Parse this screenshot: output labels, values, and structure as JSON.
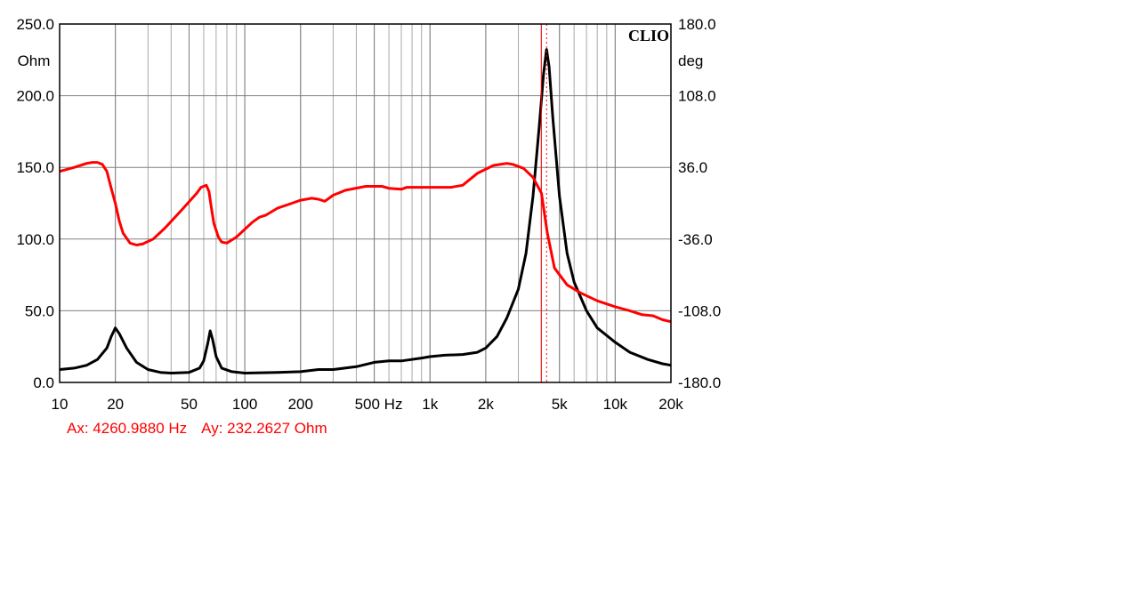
{
  "chart_data": {
    "type": "line",
    "title": "",
    "brand_label": "CLIO",
    "x_scale": "log",
    "x_range": [
      10,
      20000
    ],
    "x_ticks": [
      {
        "value": 10,
        "label": "10"
      },
      {
        "value": 20,
        "label": "20"
      },
      {
        "value": 50,
        "label": "50"
      },
      {
        "value": 100,
        "label": "100"
      },
      {
        "value": 200,
        "label": "200"
      },
      {
        "value": 500,
        "label": "500 Hz"
      },
      {
        "value": 1000,
        "label": "1k"
      },
      {
        "value": 2000,
        "label": "2k"
      },
      {
        "value": 5000,
        "label": "5k"
      },
      {
        "value": 10000,
        "label": "10k"
      },
      {
        "value": 20000,
        "label": "20k"
      }
    ],
    "y_left": {
      "unit": "Ohm",
      "range": [
        0,
        250
      ],
      "ticks": [
        {
          "value": 0,
          "label": "0.0"
        },
        {
          "value": 50,
          "label": "50.0"
        },
        {
          "value": 100,
          "label": "100.0"
        },
        {
          "value": 150,
          "label": "150.0"
        },
        {
          "value": 200,
          "label": "200.0"
        },
        {
          "value": 250,
          "label": "250.0"
        }
      ]
    },
    "y_right": {
      "unit": "deg",
      "range": [
        -180,
        180
      ],
      "ticks": [
        {
          "value": -180,
          "label": "-180.0"
        },
        {
          "value": -108,
          "label": "-108.0"
        },
        {
          "value": -36,
          "label": "-36.0"
        },
        {
          "value": 36,
          "label": "36.0"
        },
        {
          "value": 108,
          "label": "108.0"
        },
        {
          "value": 180,
          "label": "180.0"
        }
      ]
    },
    "grid": true,
    "cursor": {
      "x": 4260.988,
      "ax_label": "Ax: 4260.9880 Hz",
      "ay_label": "Ay: 232.2627 Ohm"
    },
    "series": [
      {
        "axis": "left",
        "color": "#000000",
        "points": [
          [
            10,
            9
          ],
          [
            12,
            10
          ],
          [
            14,
            12
          ],
          [
            16,
            16
          ],
          [
            18,
            24
          ],
          [
            19,
            32
          ],
          [
            20,
            38
          ],
          [
            21,
            34
          ],
          [
            23,
            24
          ],
          [
            26,
            14
          ],
          [
            30,
            9
          ],
          [
            35,
            7
          ],
          [
            40,
            6.5
          ],
          [
            50,
            7
          ],
          [
            57,
            10
          ],
          [
            60,
            15
          ],
          [
            63,
            27
          ],
          [
            65,
            36
          ],
          [
            67,
            30
          ],
          [
            70,
            18
          ],
          [
            75,
            10
          ],
          [
            85,
            7.5
          ],
          [
            100,
            6.5
          ],
          [
            150,
            7
          ],
          [
            200,
            7.5
          ],
          [
            250,
            9
          ],
          [
            300,
            9
          ],
          [
            400,
            11
          ],
          [
            500,
            14
          ],
          [
            600,
            15
          ],
          [
            700,
            15
          ],
          [
            900,
            17
          ],
          [
            1000,
            18
          ],
          [
            1200,
            19
          ],
          [
            1500,
            19.5
          ],
          [
            1800,
            21
          ],
          [
            2000,
            24
          ],
          [
            2300,
            32
          ],
          [
            2600,
            45
          ],
          [
            3000,
            65
          ],
          [
            3300,
            90
          ],
          [
            3600,
            130
          ],
          [
            3900,
            180
          ],
          [
            4100,
            215
          ],
          [
            4260.988,
            232.26
          ],
          [
            4400,
            220
          ],
          [
            4600,
            185
          ],
          [
            5000,
            130
          ],
          [
            5500,
            90
          ],
          [
            6000,
            70
          ],
          [
            7000,
            50
          ],
          [
            8000,
            38
          ],
          [
            10000,
            28
          ],
          [
            12000,
            21
          ],
          [
            15000,
            16
          ],
          [
            18000,
            13
          ],
          [
            20000,
            12
          ]
        ]
      },
      {
        "axis": "right",
        "color": "#ff0000",
        "points": [
          [
            10,
            32
          ],
          [
            12,
            36
          ],
          [
            14,
            40
          ],
          [
            15,
            41
          ],
          [
            16,
            41
          ],
          [
            17,
            39
          ],
          [
            18,
            32
          ],
          [
            19,
            15
          ],
          [
            20,
            0
          ],
          [
            21,
            -18
          ],
          [
            22,
            -30
          ],
          [
            24,
            -40
          ],
          [
            26,
            -42
          ],
          [
            28,
            -41
          ],
          [
            32,
            -36
          ],
          [
            37,
            -25
          ],
          [
            45,
            -8
          ],
          [
            55,
            10
          ],
          [
            58,
            16
          ],
          [
            62,
            18
          ],
          [
            64,
            12
          ],
          [
            66,
            -5
          ],
          [
            68,
            -20
          ],
          [
            72,
            -34
          ],
          [
            75,
            -39
          ],
          [
            80,
            -40
          ],
          [
            90,
            -34
          ],
          [
            110,
            -19
          ],
          [
            120,
            -14
          ],
          [
            130,
            -12
          ],
          [
            150,
            -5
          ],
          [
            180,
            0
          ],
          [
            200,
            3
          ],
          [
            230,
            5
          ],
          [
            250,
            4
          ],
          [
            270,
            2
          ],
          [
            280,
            4
          ],
          [
            300,
            8
          ],
          [
            350,
            13
          ],
          [
            450,
            17
          ],
          [
            550,
            17
          ],
          [
            600,
            15
          ],
          [
            700,
            14
          ],
          [
            750,
            16
          ],
          [
            900,
            16
          ],
          [
            1000,
            16
          ],
          [
            1300,
            16
          ],
          [
            1500,
            18
          ],
          [
            1800,
            30
          ],
          [
            2200,
            38
          ],
          [
            2600,
            40
          ],
          [
            2800,
            39
          ],
          [
            3200,
            35
          ],
          [
            3600,
            26
          ],
          [
            4000,
            10
          ],
          [
            4300,
            -30
          ],
          [
            4700,
            -65
          ],
          [
            5500,
            -82
          ],
          [
            6500,
            -90
          ],
          [
            8000,
            -98
          ],
          [
            10000,
            -104
          ],
          [
            12000,
            -108
          ],
          [
            14000,
            -112
          ],
          [
            16000,
            -113
          ],
          [
            18000,
            -117
          ],
          [
            20000,
            -119
          ]
        ]
      }
    ]
  }
}
